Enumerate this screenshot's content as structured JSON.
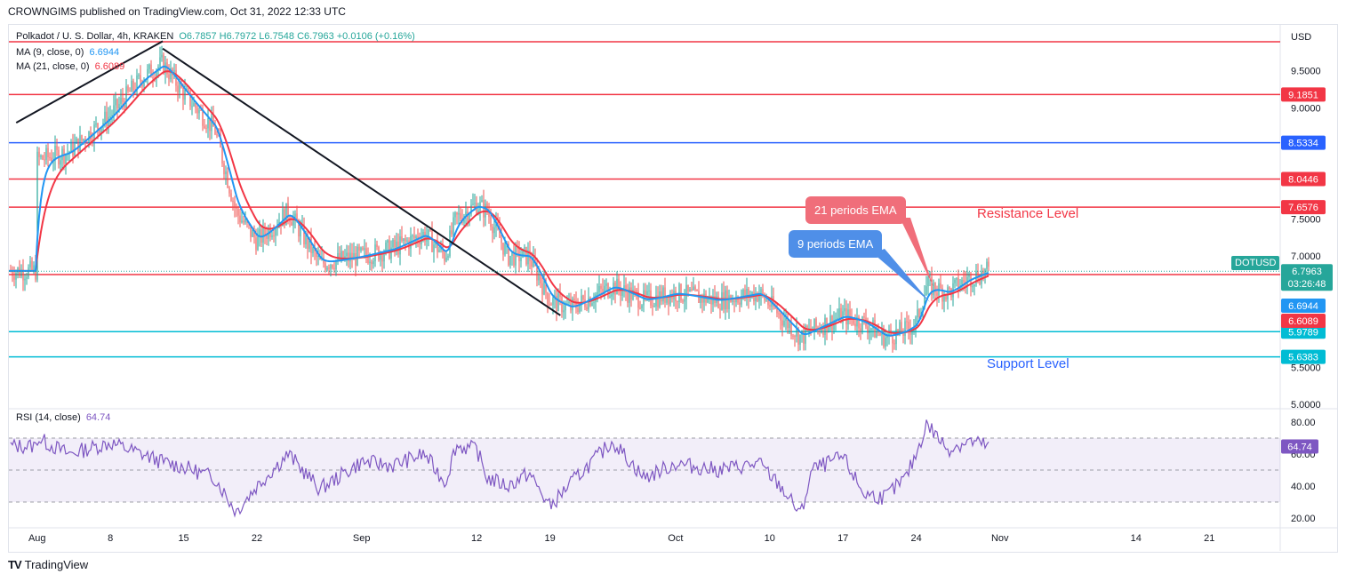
{
  "publisher": "CROWNGIMS published on TradingView.com, Oct 31, 2022 12:33 UTC",
  "brand": "TradingView",
  "legend": {
    "symbol": "Polkadot / U. S. Dollar, 4h, KRAKEN",
    "ohlc": "O6.7857 H6.7972 L6.7548 C6.7963 +0.0106 (+0.16%)",
    "ma9_label": "MA (9, close, 0)",
    "ma9_value": "6.6944",
    "ma21_label": "MA (21, close, 0)",
    "ma21_value": "6.6089",
    "rsi_label": "RSI (14, close)",
    "rsi_value": "64.74"
  },
  "annotations": {
    "resistance": "Resistance Level",
    "support": "Support Level",
    "ema21": "21 periods EMA",
    "ema9": "9 periods EMA"
  },
  "symbol_tag": "DOTUSD",
  "countdown": "03:26:48",
  "colors": {
    "red_line": "#f23645",
    "blue_line": "#2962ff",
    "cyan_line": "#00bcd4",
    "ema9": "#2196f3",
    "ema21": "#f23645",
    "rsi": "#7e57c2",
    "up": "#26a69a",
    "down": "#ef5350"
  },
  "chart_data": [
    {
      "type": "line",
      "title": "Polkadot / U. S. Dollar, 4h, KRAKEN",
      "yunit": "USD",
      "ylim": [
        5.0,
        10.0
      ],
      "y_ticks": [
        "9.5000",
        "9.0000",
        "7.5000",
        "7.0000",
        "5.5000",
        "5.0000"
      ],
      "x_ticks": [
        "Aug",
        "8",
        "15",
        "22",
        "Sep",
        "12",
        "19",
        "Oct",
        "10",
        "17",
        "24",
        "Nov",
        "14",
        "21"
      ],
      "horizontal_levels": [
        {
          "value": 9.18,
          "label": "9.1851",
          "color": "red"
        },
        {
          "value": 8.53,
          "label": "8.5334",
          "color": "blue"
        },
        {
          "value": 8.04,
          "label": "8.0446",
          "color": "red"
        },
        {
          "value": 7.66,
          "label": "7.6576",
          "color": "red"
        },
        {
          "value": 6.75,
          "label": "6.7488",
          "color": "red"
        },
        {
          "value": 5.98,
          "label": "5.9789",
          "color": "cyan"
        },
        {
          "value": 5.64,
          "label": "5.6383",
          "color": "cyan"
        }
      ],
      "last_price": {
        "value": 6.7963,
        "label": "6.7963"
      },
      "ema_labels": {
        "ema9": "6.6944",
        "ema21": "6.6089"
      },
      "close_series": {
        "x": [
          "Aug 1",
          "Aug 4",
          "Aug 8",
          "Aug 11",
          "Aug 13",
          "Aug 15",
          "Aug 18",
          "Aug 20",
          "Aug 22",
          "Aug 25",
          "Aug 28",
          "Sep 1",
          "Sep 4",
          "Sep 7",
          "Sep 9",
          "Sep 10",
          "Sep 12",
          "Sep 13",
          "Sep 15",
          "Sep 17",
          "Sep 19",
          "Sep 21",
          "Sep 25",
          "Sep 28",
          "Oct 1",
          "Oct 5",
          "Oct 9",
          "Oct 11",
          "Oct 13",
          "Oct 14",
          "Oct 17",
          "Oct 19",
          "Oct 21",
          "Oct 23",
          "Oct 24",
          "Oct 25",
          "Oct 27",
          "Oct 29",
          "Oct 31"
        ],
        "y": [
          8.3,
          8.4,
          8.9,
          9.4,
          9.6,
          9.2,
          8.7,
          7.6,
          7.2,
          7.6,
          6.9,
          7.0,
          7.1,
          7.3,
          7.0,
          7.5,
          7.7,
          7.6,
          7.0,
          7.0,
          6.4,
          6.3,
          6.6,
          6.4,
          6.5,
          6.4,
          6.5,
          6.2,
          5.9,
          6.0,
          6.2,
          6.1,
          5.9,
          6.0,
          6.1,
          6.6,
          6.5,
          6.7,
          6.8
        ]
      },
      "trendlines": [
        {
          "x": [
            "Jul 31",
            "Aug 13"
          ],
          "y": [
            8.8,
            9.9
          ]
        },
        {
          "x": [
            "Aug 13",
            "Sep 20"
          ],
          "y": [
            9.8,
            6.2
          ]
        }
      ]
    },
    {
      "type": "line",
      "title": "RSI (14, close)",
      "ylim": [
        15,
        85
      ],
      "y_ticks": [
        "80.00",
        "60.00",
        "40.00",
        "20.00"
      ],
      "bands": [
        70,
        50,
        30
      ],
      "last_value": "64.74",
      "series": {
        "x": [
          "Aug 1",
          "Aug 4",
          "Aug 8",
          "Aug 11",
          "Aug 13",
          "Aug 15",
          "Aug 18",
          "Aug 20",
          "Aug 22",
          "Aug 25",
          "Aug 28",
          "Sep 1",
          "Sep 4",
          "Sep 7",
          "Sep 9",
          "Sep 10",
          "Sep 12",
          "Sep 13",
          "Sep 15",
          "Sep 17",
          "Sep 19",
          "Sep 21",
          "Sep 25",
          "Sep 28",
          "Oct 1",
          "Oct 5",
          "Oct 9",
          "Oct 11",
          "Oct 13",
          "Oct 14",
          "Oct 17",
          "Oct 19",
          "Oct 21",
          "Oct 23",
          "Oct 24",
          "Oct 25",
          "Oct 27",
          "Oct 29",
          "Oct 31"
        ],
        "y": [
          70,
          60,
          67,
          60,
          55,
          52,
          45,
          24,
          40,
          60,
          38,
          55,
          53,
          60,
          42,
          65,
          63,
          45,
          40,
          48,
          27,
          42,
          68,
          45,
          54,
          50,
          54,
          40,
          22,
          50,
          58,
          35,
          33,
          45,
          60,
          79,
          63,
          68,
          65
        ]
      }
    }
  ]
}
